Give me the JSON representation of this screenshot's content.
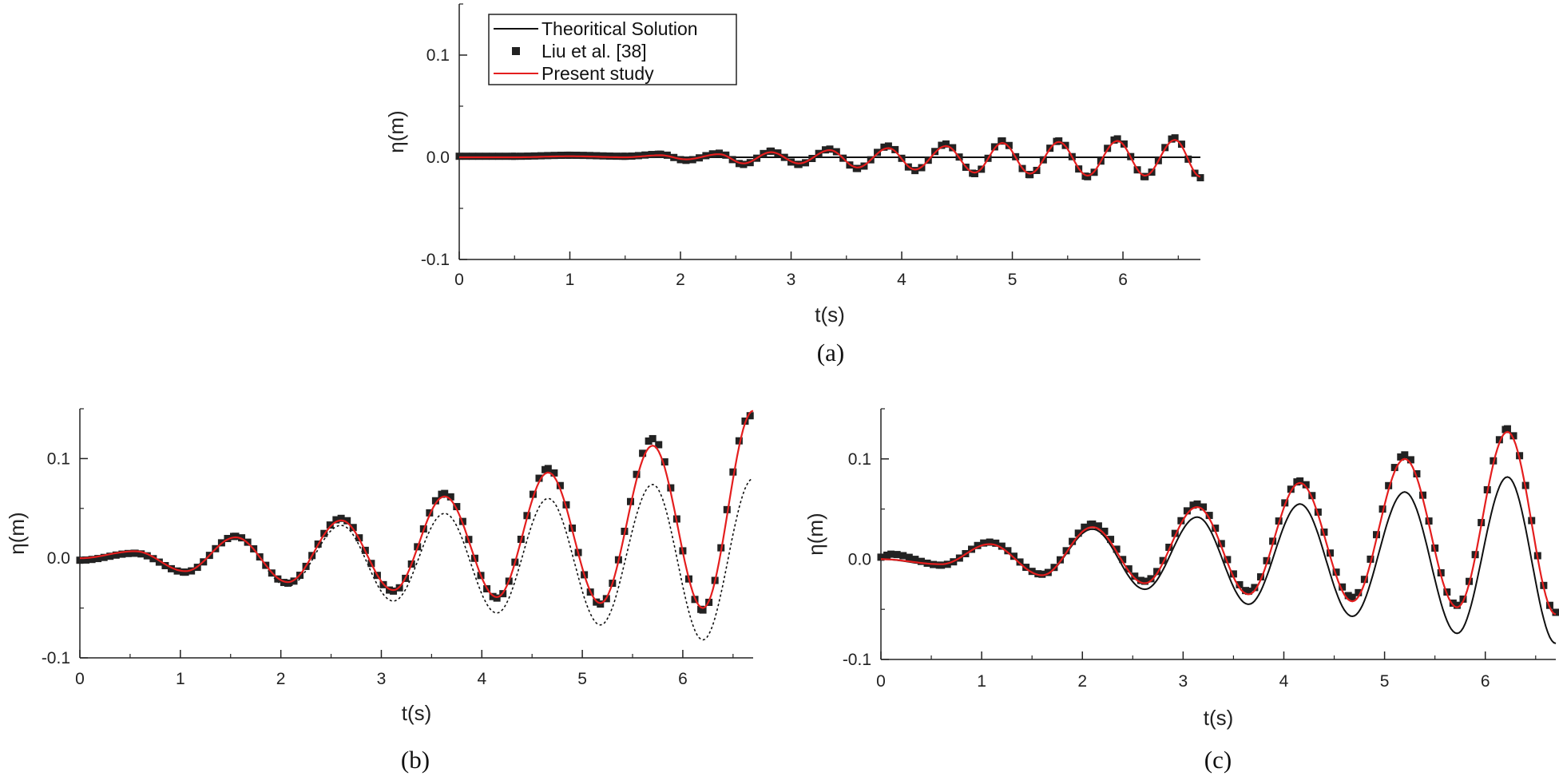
{
  "chart_data": [
    {
      "panel": "a",
      "type": "line",
      "caption": "(a)",
      "xlabel": "t(s)",
      "ylabel": "η(m)",
      "xlim": [
        0,
        6.7
      ],
      "ylim": [
        -0.1,
        0.15
      ],
      "x_ticks": [
        "0",
        "1",
        "2",
        "3",
        "4",
        "5",
        "6"
      ],
      "y_ticks": [
        "-0.1",
        "0.0",
        "0.1"
      ],
      "legend": {
        "position": "top-left",
        "entries": [
          "Theoritical Solution",
          "Liu et al. [38]",
          "Present study"
        ]
      },
      "colors": {
        "theoretical": "#111111",
        "liu": "#222222",
        "present": "#e41e1e"
      },
      "series": [
        {
          "name": "Theoritical Solution",
          "style": "solid-line",
          "x": [
            0,
            6.7
          ],
          "y": [
            0,
            0
          ]
        },
        {
          "name": "Liu et al. [38]",
          "style": "markers",
          "x": [
            0.0,
            0.5,
            1.0,
            1.5,
            1.82,
            2.05,
            2.35,
            2.57,
            2.82,
            3.07,
            3.35,
            3.6,
            3.88,
            4.12,
            4.4,
            4.66,
            4.91,
            5.16,
            5.42,
            5.68,
            5.95,
            6.2,
            6.47,
            6.7
          ],
          "y": [
            0.001,
            0.001,
            0.002,
            0.001,
            0.003,
            -0.003,
            0.004,
            -0.007,
            0.006,
            -0.007,
            0.008,
            -0.011,
            0.011,
            -0.013,
            0.013,
            -0.016,
            0.016,
            -0.017,
            0.016,
            -0.019,
            0.018,
            -0.019,
            0.019,
            -0.02
          ]
        },
        {
          "name": "Present study",
          "style": "solid-line",
          "x": [
            0.0,
            0.5,
            1.0,
            1.5,
            1.82,
            2.05,
            2.35,
            2.57,
            2.82,
            3.07,
            3.35,
            3.6,
            3.88,
            4.12,
            4.4,
            4.66,
            4.91,
            5.16,
            5.42,
            5.68,
            5.95,
            6.2,
            6.47,
            6.7
          ],
          "y": [
            0.0,
            0.0,
            0.001,
            0.0,
            0.002,
            -0.002,
            0.003,
            -0.006,
            0.005,
            -0.006,
            0.007,
            -0.01,
            0.009,
            -0.012,
            0.011,
            -0.015,
            0.014,
            -0.016,
            0.015,
            -0.018,
            0.016,
            -0.018,
            0.017,
            -0.019
          ]
        }
      ]
    },
    {
      "panel": "b",
      "type": "line",
      "caption": "(b)",
      "xlabel": "t(s)",
      "ylabel": "η(m)",
      "xlim": [
        0,
        6.7
      ],
      "ylim": [
        -0.1,
        0.15
      ],
      "x_ticks": [
        "0",
        "1",
        "2",
        "3",
        "4",
        "5",
        "6"
      ],
      "y_ticks": [
        "-0.1",
        "0.0",
        "0.1"
      ],
      "colors": {
        "theoretical": "#111111",
        "liu": "#222222",
        "present": "#e41e1e"
      },
      "series": [
        {
          "name": "Theoritical Solution",
          "style": "dashed-line",
          "x": [
            0.0,
            0.55,
            1.05,
            1.55,
            2.07,
            2.6,
            3.12,
            3.63,
            4.15,
            4.66,
            5.18,
            5.7,
            6.2,
            6.7
          ],
          "y": [
            0.0,
            0.006,
            -0.012,
            0.022,
            -0.028,
            0.033,
            -0.043,
            0.045,
            -0.055,
            0.06,
            -0.067,
            0.074,
            -0.082,
            0.08
          ]
        },
        {
          "name": "Liu et al. [38]",
          "style": "markers",
          "x": [
            0.0,
            0.55,
            1.05,
            1.55,
            2.07,
            2.6,
            3.12,
            3.63,
            4.15,
            4.66,
            5.18,
            5.7,
            6.2,
            6.67
          ],
          "y": [
            -0.002,
            0.005,
            -0.014,
            0.022,
            -0.025,
            0.04,
            -0.033,
            0.065,
            -0.04,
            0.09,
            -0.046,
            0.12,
            -0.052,
            0.143
          ]
        },
        {
          "name": "Present study",
          "style": "solid-line",
          "x": [
            0.0,
            0.55,
            1.05,
            1.55,
            2.07,
            2.6,
            3.12,
            3.63,
            4.15,
            4.66,
            5.18,
            5.7,
            6.2,
            6.7
          ],
          "y": [
            0.0,
            0.007,
            -0.013,
            0.021,
            -0.024,
            0.038,
            -0.032,
            0.062,
            -0.039,
            0.086,
            -0.045,
            0.113,
            -0.05,
            0.148
          ]
        }
      ]
    },
    {
      "panel": "c",
      "type": "line",
      "caption": "(c)",
      "xlabel": "t(s)",
      "ylabel": "η(m)",
      "xlim": [
        0,
        6.7
      ],
      "ylim": [
        -0.1,
        0.15
      ],
      "x_ticks": [
        "0",
        "1",
        "2",
        "3",
        "4",
        "5",
        "6"
      ],
      "y_ticks": [
        "-0.1",
        "0.0",
        "0.1"
      ],
      "colors": {
        "theoretical": "#111111",
        "liu": "#222222",
        "present": "#e41e1e"
      },
      "series": [
        {
          "name": "Theoritical Solution",
          "style": "solid-line",
          "x": [
            0.0,
            0.6,
            1.08,
            1.6,
            2.1,
            2.62,
            3.14,
            3.65,
            4.16,
            4.68,
            5.2,
            5.72,
            6.22,
            6.7
          ],
          "y": [
            0.0,
            -0.006,
            0.015,
            -0.016,
            0.03,
            -0.03,
            0.042,
            -0.045,
            0.055,
            -0.057,
            0.067,
            -0.074,
            0.082,
            -0.084
          ]
        },
        {
          "name": "Liu et al. [38]",
          "style": "markers",
          "x": [
            0.0,
            0.1,
            0.6,
            1.08,
            1.6,
            2.1,
            2.62,
            3.14,
            3.65,
            4.16,
            4.68,
            5.2,
            5.72,
            6.22,
            6.7
          ],
          "y": [
            0.002,
            0.005,
            -0.006,
            0.017,
            -0.015,
            0.035,
            -0.022,
            0.055,
            -0.032,
            0.078,
            -0.038,
            0.104,
            -0.046,
            0.13,
            -0.053
          ]
        },
        {
          "name": "Present study",
          "style": "solid-line",
          "x": [
            0.0,
            0.6,
            1.08,
            1.6,
            2.1,
            2.62,
            3.14,
            3.65,
            4.16,
            4.68,
            5.2,
            5.72,
            6.22,
            6.7
          ],
          "y": [
            0.0,
            -0.005,
            0.015,
            -0.016,
            0.032,
            -0.024,
            0.052,
            -0.035,
            0.076,
            -0.042,
            0.1,
            -0.048,
            0.127,
            -0.055
          ]
        }
      ]
    }
  ]
}
